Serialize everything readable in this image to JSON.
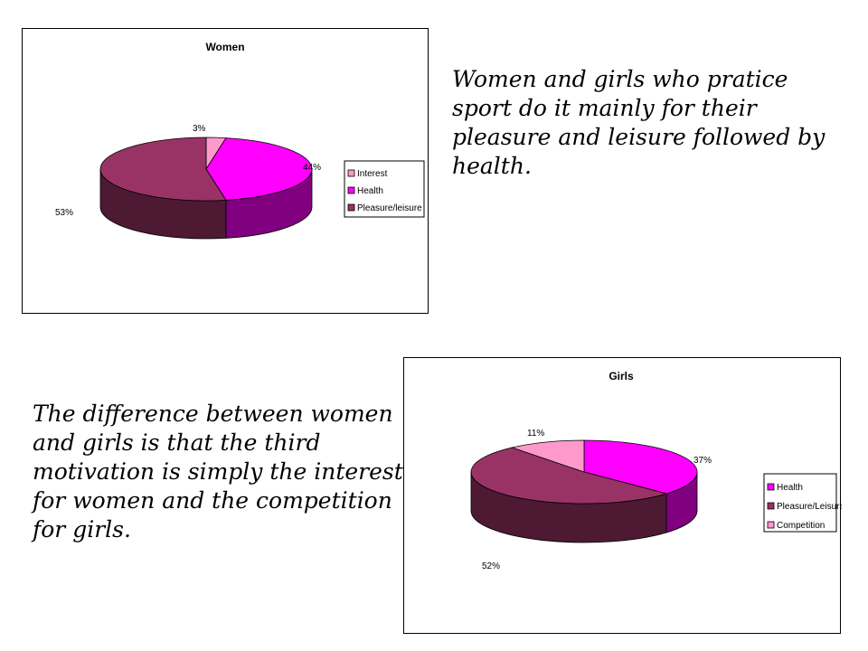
{
  "slide": {
    "women_text": "Women and girls who pratice sport do it mainly for their pleasure and leisure followed by  health.",
    "girls_text": "The difference between women and girls is that the third motivation is simply the interest for women and the competition for girls."
  },
  "chart_data": [
    {
      "type": "pie",
      "title": "Women",
      "categories": [
        "Interest",
        "Health",
        "Pleasure/leisure"
      ],
      "values": [
        3,
        44,
        53
      ],
      "labels": [
        "3%",
        "44%",
        "53%"
      ],
      "colors": [
        "#ff99cc",
        "#ff00ff",
        "#993366"
      ],
      "side_colors": [
        "#cc7aa3",
        "#800080",
        "#4d1933"
      ],
      "legend": "right",
      "start_angle_deg": -90
    },
    {
      "type": "pie",
      "title": "Girls",
      "categories": [
        "Health",
        "Pleasure/Leisure",
        "Competition"
      ],
      "values": [
        37,
        52,
        11
      ],
      "labels": [
        "37%",
        "52%",
        "11%"
      ],
      "colors": [
        "#ff00ff",
        "#993366",
        "#ff99cc"
      ],
      "side_colors": [
        "#800080",
        "#4d1933",
        "#cc7aa3"
      ],
      "legend": "right",
      "start_angle_deg": -90
    }
  ]
}
